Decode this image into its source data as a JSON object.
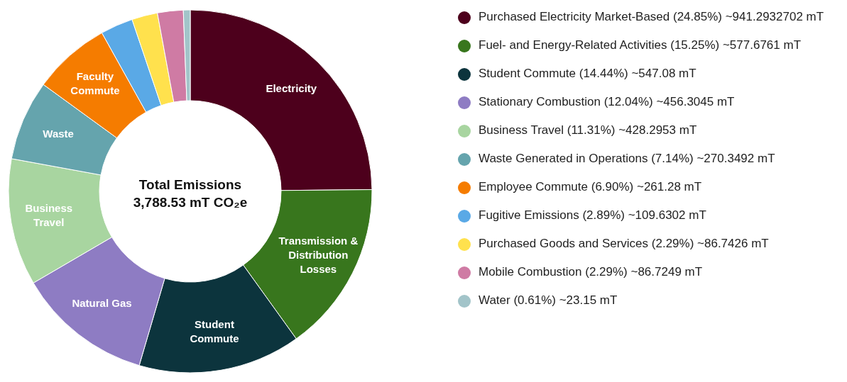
{
  "chart_data": {
    "type": "donut",
    "title": "Total Emissions",
    "subtitle": "3,788.53 mT CO₂e",
    "categories": [
      "Purchased Electricity Market-Based (24.85%) ~941.2932702 mT",
      "Fuel- and Energy-Related Activities (15.25%) ~577.6761 mT",
      "Student Commute (14.44%) ~547.08 mT",
      "Stationary Combustion (12.04%) ~456.3045 mT",
      "Business Travel (11.31%) ~428.2953 mT",
      "Waste Generated in Operations (7.14%) ~270.3492 mT",
      "Employee Commute (6.90%) ~261.28 mT",
      "Fugitive Emissions (2.89%) ~109.6302 mT",
      "Purchased Goods and Services (2.29%) ~86.7426 mT",
      "Mobile Combustion (2.29%) ~86.7249 mT",
      "Water (0.61%) ~23.15 mT"
    ],
    "values": [
      941.2932702,
      577.6761,
      547.08,
      456.3045,
      428.2953,
      270.3492,
      261.28,
      109.6302,
      86.7426,
      86.7249,
      23.15
    ],
    "colors": [
      "#4d001c",
      "#38761d",
      "#0c343d",
      "#8e7cc3",
      "#a8d5a0",
      "#65a4ad",
      "#f57c00",
      "#5aa9e6",
      "#ffe14d",
      "#cf7ba4",
      "#a2c4c9"
    ],
    "annotations": [
      {
        "text": "Electricity",
        "x": "Purchased Electricity Market-Based (24.85%) ~941.2932702 mT"
      },
      {
        "text": "Transmission & Distribution Losses",
        "x": "Fuel- and Energy-Related Activities (15.25%) ~577.6761 mT"
      },
      {
        "text": "Student Commute",
        "x": "Student Commute (14.44%) ~547.08 mT"
      },
      {
        "text": "Natural Gas",
        "x": "Stationary Combustion (12.04%) ~456.3045 mT"
      },
      {
        "text": "Business Travel",
        "x": "Business Travel (11.31%) ~428.2953 mT"
      },
      {
        "text": "Waste",
        "x": "Waste Generated in Operations (7.14%) ~270.3492 mT"
      },
      {
        "text": "Faculty Commute",
        "x": "Employee Commute (6.90%) ~261.28 mT"
      }
    ],
    "legend": "right"
  }
}
